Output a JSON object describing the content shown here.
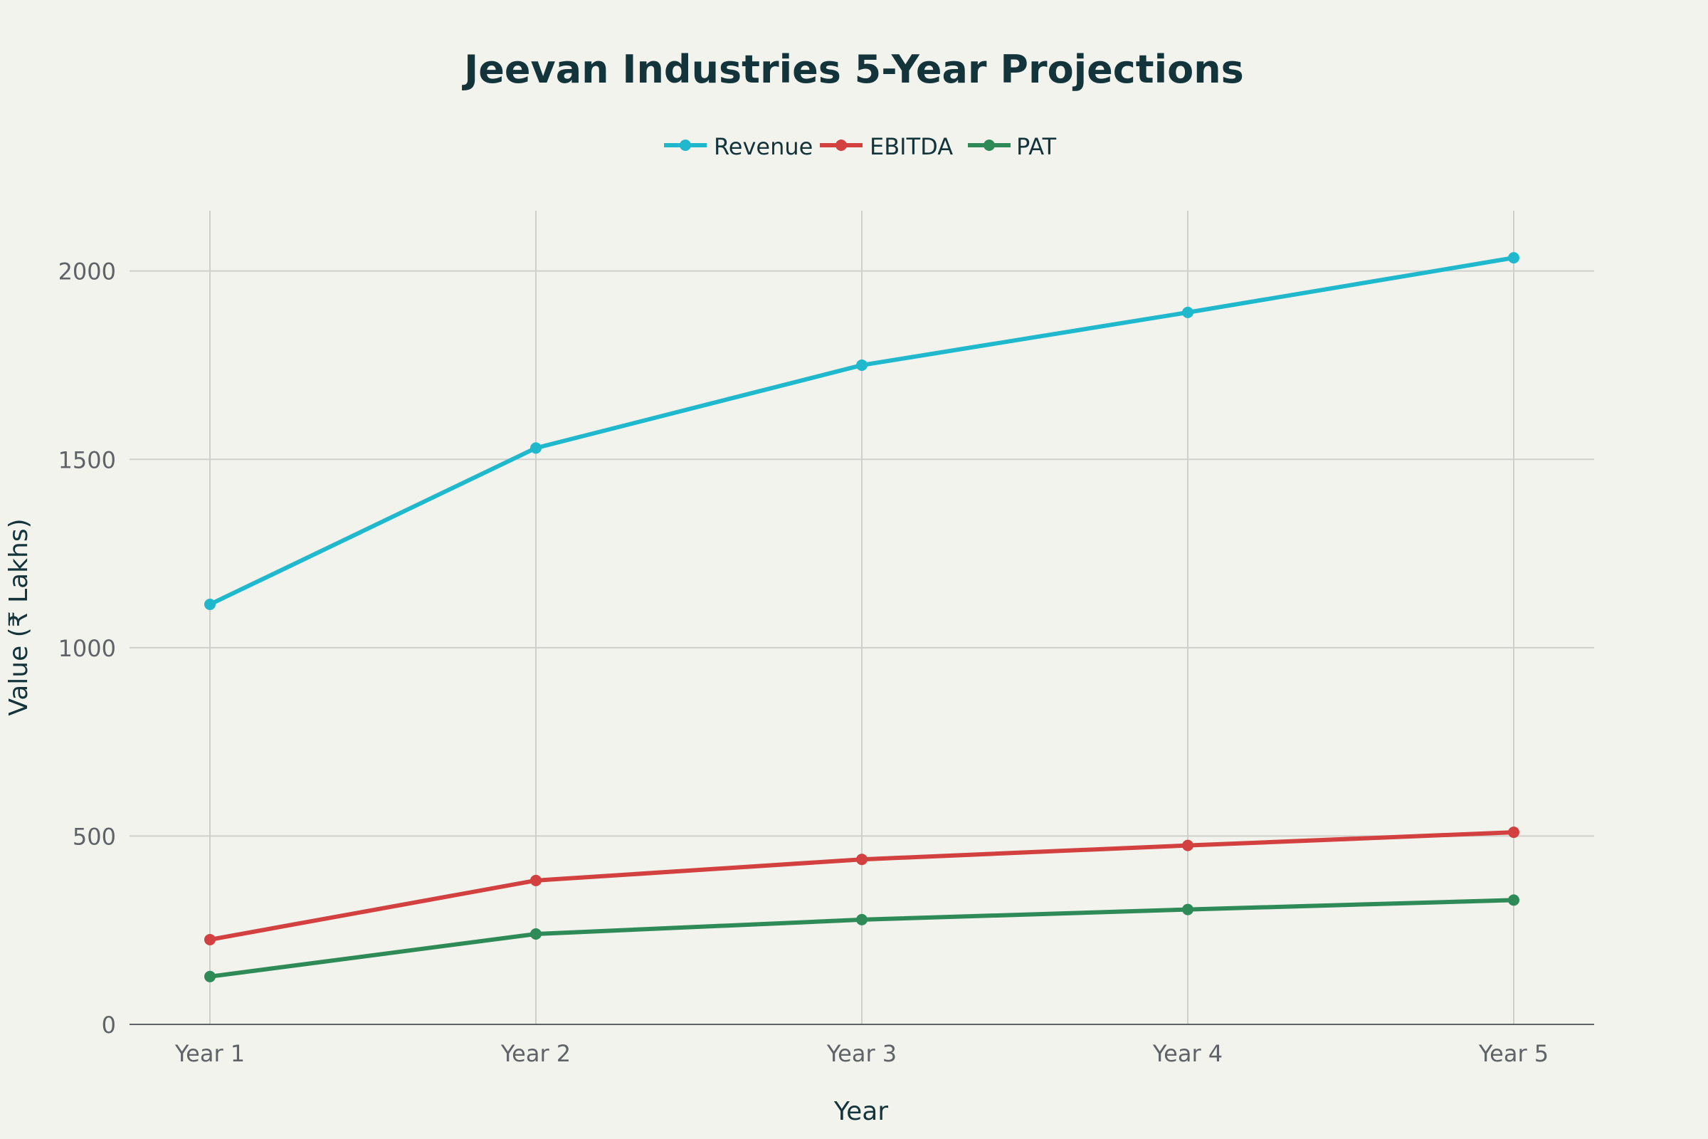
{
  "chart_data": {
    "type": "line",
    "title": "Jeevan Industries 5-Year Projections",
    "xlabel": "Year",
    "ylabel": "Value (₹ Lakhs)",
    "categories": [
      "Year 1",
      "Year 2",
      "Year 3",
      "Year 4",
      "Year 5"
    ],
    "ylim": [
      0,
      2160
    ],
    "yticks": [
      0,
      500,
      1000,
      1500,
      2000
    ],
    "grid": true,
    "legend_position": "top-center",
    "series": [
      {
        "name": "Revenue",
        "color": "#1fb8cd",
        "values": [
          1115,
          1530,
          1750,
          1890,
          2035
        ]
      },
      {
        "name": "EBITDA",
        "color": "#d2403f",
        "values": [
          225,
          382,
          438,
          475,
          510
        ]
      },
      {
        "name": "PAT",
        "color": "#2e8b57",
        "values": [
          127,
          240,
          278,
          305,
          330
        ]
      }
    ]
  }
}
